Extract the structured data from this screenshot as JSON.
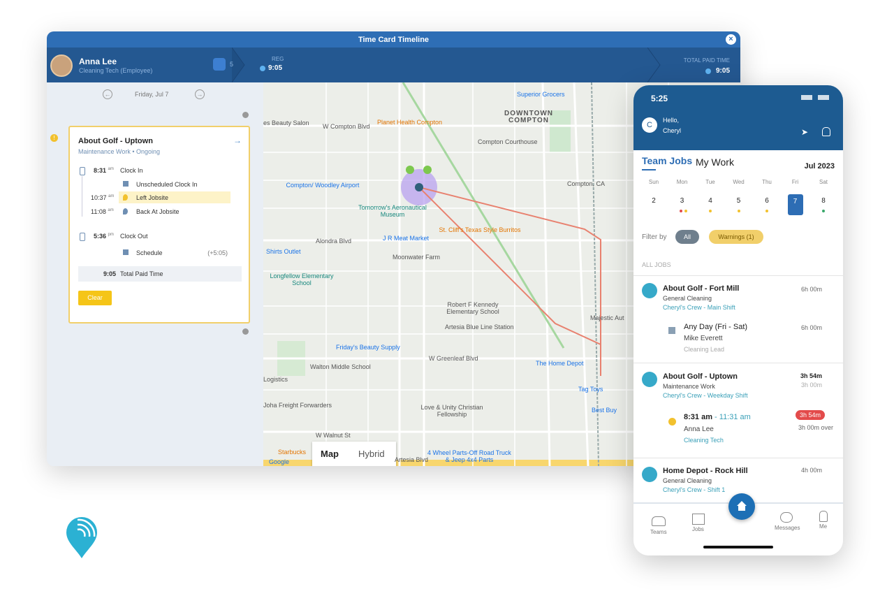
{
  "timecard": {
    "title": "Time Card Timeline",
    "employee": {
      "name": "Anna Lee",
      "role": "Cleaning Tech (Employee)"
    },
    "count": 5,
    "reg_label": "REG",
    "reg_value": "9:05",
    "total_label": "TOTAL PAID TIME",
    "total_value": "9:05",
    "date": "Friday, Jul 7",
    "job": {
      "title": "About Golf - Uptown",
      "subtitle": "Maintenance Work • Ongoing",
      "events": [
        {
          "time": "8:31",
          "suffix": "am",
          "label": "Clock In"
        },
        {
          "label": "Unscheduled Clock In"
        },
        {
          "time": "10:37",
          "suffix": "am",
          "label": "Left Jobsite"
        },
        {
          "time": "11:08",
          "suffix": "am",
          "label": "Back At Jobsite"
        },
        {
          "time": "5:36",
          "suffix": "pm",
          "label": "Clock Out"
        },
        {
          "label": "Schedule",
          "note": "(+5:05)"
        }
      ],
      "total": {
        "time": "9:05",
        "label": "Total Paid Time"
      },
      "button": "Clear"
    }
  },
  "map": {
    "labels": [
      "W Compton Blvd",
      "Planet Health Compton",
      "DOWNTOWN COMPTON",
      "Superior Grocers",
      "Compton Courthouse",
      "Compton/ Woodley Airport",
      "Tomorrow's Aeronautical Museum",
      "Alondra Blvd",
      "J R Meat Market",
      "St. Cliff's Texas Style Burritos",
      "Shirts Outlet",
      "Moonwater Farm",
      "Longfellow Elementary School",
      "Robert F Kennedy Elementary School",
      "Artesia Blue Line Station",
      "Friday's Beauty Supply",
      "W Greenleaf Blvd",
      "The Home Depot",
      "Walton Middle School",
      "Logistics",
      "Tag Toys",
      "Joha Freight Forwarders",
      "Love & Unity Christian Fellowship",
      "Best Buy",
      "4 Wheel Parts-Off Road Truck & Jeep 4x4 Parts",
      "Starbucks",
      "es Beauty Salon",
      "Majestic Aut",
      "Compton, CA",
      "W Walnut St",
      "Artesia Blvd",
      "Google"
    ],
    "tabs": [
      "Map",
      "Hybrid"
    ]
  },
  "phone": {
    "time": "5:25",
    "greeting": "Hello,",
    "user": "Cheryl",
    "avatar": "C",
    "tabs": [
      "Team Jobs",
      "My Work"
    ],
    "month": "Jul 2023",
    "weekdays": [
      "Sun",
      "Mon",
      "Tue",
      "Wed",
      "Thu",
      "Fri",
      "Sat"
    ],
    "dates": [
      2,
      3,
      4,
      5,
      6,
      7,
      8
    ],
    "filter_label": "Filter by",
    "filters": [
      "All",
      "Warnings (1)"
    ],
    "section": "ALL JOBS",
    "jobs": [
      {
        "title": "About Golf - Fort Mill",
        "type": "General Cleaning",
        "crew": "Cheryl's Crew - Main Shift",
        "duration": "6h 00m",
        "shift": {
          "when": "Any Day (Fri - Sat)",
          "person": "Mike Everett",
          "role": "Cleaning Lead",
          "duration": "6h 00m"
        }
      },
      {
        "title": "About Golf - Uptown",
        "type": "Maintenance Work",
        "crew": "Cheryl's Crew - Weekday Shift",
        "duration": "3h 54m",
        "scheduled": "3h 00m",
        "shift": {
          "when": "8:31 am",
          "until": "- 11:31 am",
          "person": "Anna Lee",
          "role": "Cleaning Tech",
          "duration": "3h 54m",
          "note": "3h 00m over"
        }
      },
      {
        "title": "Home Depot - Rock Hill",
        "type": "General Cleaning",
        "crew": "Cheryl's Crew - Shift 1",
        "duration": "4h 00m"
      }
    ],
    "nav": [
      "Teams",
      "Jobs",
      "Messages",
      "Me"
    ]
  }
}
